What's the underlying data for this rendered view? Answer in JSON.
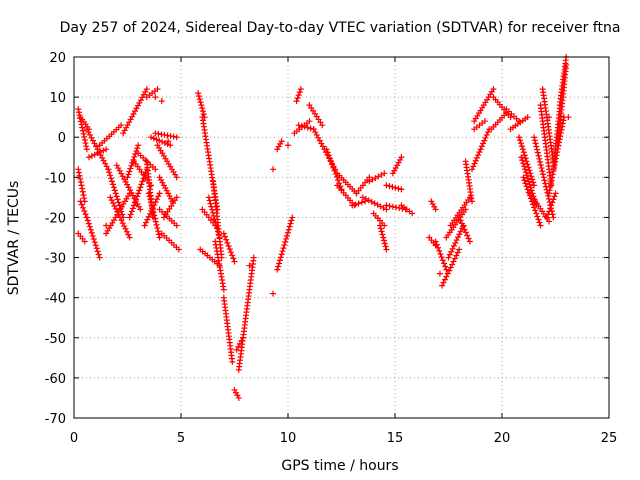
{
  "chart_data": {
    "type": "scatter",
    "title": "Day 257 of 2024, Sidereal Day-to-day VTEC variation (SDTVAR) for receiver ftna",
    "xlabel": "GPS time / hours",
    "ylabel": "SDTVAR / TECUs",
    "xlim": [
      0,
      25
    ],
    "ylim": [
      -70,
      20
    ],
    "x_ticks": [
      0,
      5,
      10,
      15,
      20,
      25
    ],
    "x_tick_labels": [
      "0",
      "5",
      "10",
      "15",
      "20",
      "25"
    ],
    "y_ticks": [
      20,
      10,
      0,
      -10,
      -20,
      -30,
      -40,
      -50,
      -60,
      -70
    ],
    "y_tick_labels": [
      "20",
      "10",
      "0",
      "-10",
      "-20",
      "-30",
      "-40",
      "-50",
      "-60",
      "-70"
    ],
    "grid": true,
    "marker": "+",
    "color": "#ff0000",
    "series": [
      {
        "name": "tracks",
        "segments": [
          {
            "x0": 0.2,
            "x1": 0.6,
            "y0": 7,
            "y1": -3
          },
          {
            "x0": 0.3,
            "x1": 0.7,
            "y0": 5,
            "y1": 2
          },
          {
            "x0": 0.2,
            "x1": 0.5,
            "y0": -8,
            "y1": -16
          },
          {
            "x0": 0.3,
            "x1": 0.6,
            "y0": -16,
            "y1": -20
          },
          {
            "x0": 0.2,
            "x1": 0.5,
            "y0": -24,
            "y1": -26
          },
          {
            "x0": 0.6,
            "x1": 1.2,
            "y0": -20,
            "y1": -30
          },
          {
            "x0": 0.6,
            "x1": 1.6,
            "y0": 2,
            "y1": -8
          },
          {
            "x0": 0.7,
            "x1": 1.5,
            "y0": -5,
            "y1": -3
          },
          {
            "x0": 1.2,
            "x1": 2.2,
            "y0": -2,
            "y1": 3
          },
          {
            "x0": 1.6,
            "x1": 2.3,
            "y0": -8,
            "y1": -20
          },
          {
            "x0": 1.5,
            "x1": 2.6,
            "y0": -24,
            "y1": -14
          },
          {
            "x0": 1.7,
            "x1": 2.6,
            "y0": -15,
            "y1": -25
          },
          {
            "x0": 2.0,
            "x1": 3.1,
            "y0": -7,
            "y1": -18
          },
          {
            "x0": 2.3,
            "x1": 3.4,
            "y0": 1,
            "y1": 12
          },
          {
            "x0": 2.5,
            "x1": 3.0,
            "y0": -10,
            "y1": -2
          },
          {
            "x0": 2.6,
            "x1": 3.4,
            "y0": -20,
            "y1": -8
          },
          {
            "x0": 2.8,
            "x1": 3.6,
            "y0": -6,
            "y1": -12
          },
          {
            "x0": 3.0,
            "x1": 3.8,
            "y0": -4,
            "y1": -8
          },
          {
            "x0": 3.4,
            "x1": 3.7,
            "y0": -6,
            "y1": -20
          },
          {
            "x0": 3.3,
            "x1": 4.0,
            "y0": -22,
            "y1": -14
          },
          {
            "x0": 3.5,
            "x1": 4.0,
            "y0": -14,
            "y1": -25
          },
          {
            "x0": 3.4,
            "x1": 3.9,
            "y0": 10,
            "y1": 12
          },
          {
            "x0": 3.6,
            "x1": 4.5,
            "y0": 0,
            "y1": -2
          },
          {
            "x0": 3.8,
            "x1": 4.8,
            "y0": 1,
            "y1": 0
          },
          {
            "x0": 3.9,
            "x1": 4.8,
            "y0": -2,
            "y1": -10
          },
          {
            "x0": 4.0,
            "x1": 4.8,
            "y0": -18,
            "y1": -22
          },
          {
            "x0": 4.0,
            "x1": 4.6,
            "y0": -10,
            "y1": -16
          },
          {
            "x0": 4.1,
            "x1": 4.9,
            "y0": -24,
            "y1": -28
          },
          {
            "x0": 4.2,
            "x1": 4.8,
            "y0": -20,
            "y1": -15
          },
          {
            "x0": 5.8,
            "x1": 6.1,
            "y0": 11,
            "y1": 5
          },
          {
            "x0": 6.0,
            "x1": 6.7,
            "y0": 5,
            "y1": -18
          },
          {
            "x0": 6.3,
            "x1": 6.8,
            "y0": -15,
            "y1": -25
          },
          {
            "x0": 5.9,
            "x1": 6.8,
            "y0": -28,
            "y1": -32
          },
          {
            "x0": 6.0,
            "x1": 6.6,
            "y0": -18,
            "y1": -22
          },
          {
            "x0": 6.5,
            "x1": 6.9,
            "y0": -11,
            "y1": -30
          },
          {
            "x0": 6.6,
            "x1": 7.0,
            "y0": -26,
            "y1": -38
          },
          {
            "x0": 7.0,
            "x1": 7.5,
            "y0": -24,
            "y1": -31
          },
          {
            "x0": 7.0,
            "x1": 7.4,
            "y0": -40,
            "y1": -56
          },
          {
            "x0": 7.5,
            "x1": 7.7,
            "y0": -63,
            "y1": -65
          },
          {
            "x0": 7.7,
            "x1": 8.4,
            "y0": -58,
            "y1": -30
          },
          {
            "x0": 7.6,
            "x1": 7.9,
            "y0": -53,
            "y1": -50
          },
          {
            "x0": 9.5,
            "x1": 10.2,
            "y0": -33,
            "y1": -20
          },
          {
            "x0": 9.5,
            "x1": 9.7,
            "y0": -3,
            "y1": -1
          },
          {
            "x0": 10.4,
            "x1": 10.6,
            "y0": 9,
            "y1": 12
          },
          {
            "x0": 10.3,
            "x1": 11.0,
            "y0": 1,
            "y1": 4
          },
          {
            "x0": 10.5,
            "x1": 11.2,
            "y0": 3,
            "y1": 2
          },
          {
            "x0": 11.0,
            "x1": 11.6,
            "y0": 8,
            "y1": 3
          },
          {
            "x0": 11.2,
            "x1": 12.2,
            "y0": 2,
            "y1": -8
          },
          {
            "x0": 11.8,
            "x1": 12.5,
            "y0": -3,
            "y1": -13
          },
          {
            "x0": 12.3,
            "x1": 13.2,
            "y0": -9,
            "y1": -14
          },
          {
            "x0": 12.3,
            "x1": 13.1,
            "y0": -12,
            "y1": -17
          },
          {
            "x0": 13.2,
            "x1": 13.8,
            "y0": -14,
            "y1": -10
          },
          {
            "x0": 13.0,
            "x1": 13.6,
            "y0": -17,
            "y1": -16
          },
          {
            "x0": 13.8,
            "x1": 14.5,
            "y0": -11,
            "y1": -9
          },
          {
            "x0": 13.5,
            "x1": 14.6,
            "y0": -15,
            "y1": -18
          },
          {
            "x0": 14.0,
            "x1": 14.5,
            "y0": -19,
            "y1": -22
          },
          {
            "x0": 14.3,
            "x1": 14.6,
            "y0": -22,
            "y1": -28
          },
          {
            "x0": 14.6,
            "x1": 15.3,
            "y0": -12,
            "y1": -13
          },
          {
            "x0": 14.9,
            "x1": 15.3,
            "y0": -9,
            "y1": -5
          },
          {
            "x0": 14.6,
            "x1": 15.5,
            "y0": -17,
            "y1": -18
          },
          {
            "x0": 15.3,
            "x1": 15.8,
            "y0": -17,
            "y1": -19
          },
          {
            "x0": 16.7,
            "x1": 16.9,
            "y0": -16,
            "y1": -18
          },
          {
            "x0": 16.6,
            "x1": 16.9,
            "y0": -25,
            "y1": -27
          },
          {
            "x0": 16.9,
            "x1": 17.4,
            "y0": -26,
            "y1": -33
          },
          {
            "x0": 17.2,
            "x1": 18.0,
            "y0": -37,
            "y1": -28
          },
          {
            "x0": 17.4,
            "x1": 18.3,
            "y0": -25,
            "y1": -18
          },
          {
            "x0": 17.6,
            "x1": 18.5,
            "y0": -22,
            "y1": -15
          },
          {
            "x0": 17.5,
            "x1": 18.2,
            "y0": -30,
            "y1": -22
          },
          {
            "x0": 18.0,
            "x1": 18.5,
            "y0": -20,
            "y1": -26
          },
          {
            "x0": 18.3,
            "x1": 18.6,
            "y0": -6,
            "y1": -16
          },
          {
            "x0": 18.6,
            "x1": 19.4,
            "y0": -8,
            "y1": 2
          },
          {
            "x0": 18.7,
            "x1": 19.2,
            "y0": 2,
            "y1": 4
          },
          {
            "x0": 18.7,
            "x1": 19.6,
            "y0": 4,
            "y1": 12
          },
          {
            "x0": 19.6,
            "x1": 20.4,
            "y0": 10,
            "y1": 5
          },
          {
            "x0": 19.5,
            "x1": 20.2,
            "y0": 2,
            "y1": 6
          },
          {
            "x0": 20.2,
            "x1": 20.8,
            "y0": 7,
            "y1": 4
          },
          {
            "x0": 20.4,
            "x1": 21.2,
            "y0": 2,
            "y1": 5
          },
          {
            "x0": 20.8,
            "x1": 21.5,
            "y0": 0,
            "y1": -12
          },
          {
            "x0": 20.9,
            "x1": 21.6,
            "y0": -5,
            "y1": -17
          },
          {
            "x0": 21.0,
            "x1": 21.8,
            "y0": -10,
            "y1": -22
          },
          {
            "x0": 21.3,
            "x1": 22.2,
            "y0": -14,
            "y1": -21
          },
          {
            "x0": 21.5,
            "x1": 22.4,
            "y0": 0,
            "y1": -20
          },
          {
            "x0": 21.8,
            "x1": 22.3,
            "y0": 8,
            "y1": -12
          },
          {
            "x0": 21.9,
            "x1": 22.4,
            "y0": 12,
            "y1": -6
          },
          {
            "x0": 22.1,
            "x1": 22.5,
            "y0": -20,
            "y1": -14
          },
          {
            "x0": 22.2,
            "x1": 22.9,
            "y0": -14,
            "y1": 5
          },
          {
            "x0": 22.4,
            "x1": 22.8,
            "y0": -8,
            "y1": 12
          },
          {
            "x0": 22.6,
            "x1": 23.0,
            "y0": -2,
            "y1": 18
          },
          {
            "x0": 22.7,
            "x1": 23.0,
            "y0": 8,
            "y1": 20
          }
        ]
      },
      {
        "name": "isolated",
        "points": [
          [
            9.3,
            -8
          ],
          [
            9.3,
            -39
          ],
          [
            8.2,
            -32
          ],
          [
            1.5,
            -22
          ],
          [
            4.1,
            9
          ],
          [
            4.4,
            -1
          ],
          [
            3.8,
            10
          ],
          [
            22.2,
            5
          ],
          [
            23.1,
            5
          ],
          [
            17.1,
            -34
          ],
          [
            10.0,
            -2
          ]
        ]
      }
    ]
  }
}
